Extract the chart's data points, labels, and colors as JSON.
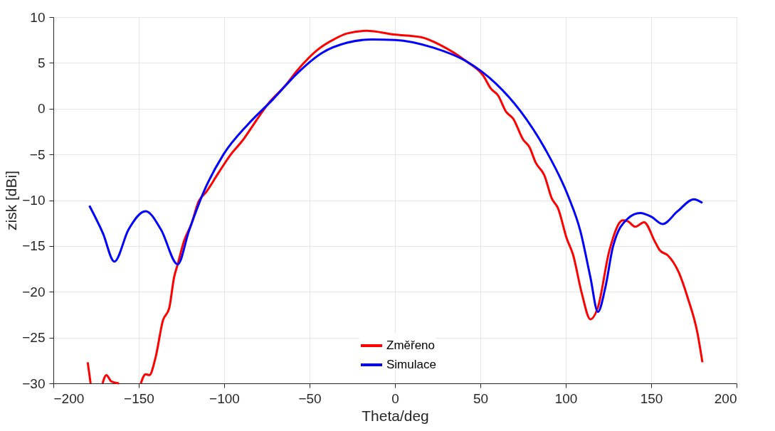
{
  "chart_data": {
    "type": "line",
    "xlabel": "Theta/deg",
    "ylabel": "zisk [dBi]",
    "xlim": [
      -200,
      200
    ],
    "xticks": [
      -200,
      -150,
      -100,
      -50,
      0,
      50,
      100,
      150,
      200
    ],
    "ylim": [
      -30,
      10
    ],
    "yticks": [
      -30,
      -25,
      -20,
      -15,
      -10,
      -5,
      0,
      5,
      10
    ],
    "grid": true,
    "legend": "bottom",
    "line_style": "solid",
    "marker": "none",
    "series": [
      {
        "name": "Změřeno",
        "color": "#ff0000",
        "x": [
          -179.9,
          -178.2,
          -175,
          -171.2,
          -169,
          -166,
          -161.6,
          -155,
          -148.8,
          -146,
          -143.8,
          -140.2,
          -135.8,
          -132.2,
          -129.3,
          -127.2,
          -123.6,
          -119.2,
          -114.9,
          -110.5,
          -103.3,
          -96.1,
          -88.9,
          -81.6,
          -74.4,
          -64.3,
          -57.1,
          -45.5,
          -35.4,
          -28.2,
          -16.6,
          -0.6,
          15.3,
          27,
          41.5,
          51.7,
          56.1,
          60.5,
          64.9,
          69.2,
          75.1,
          78.7,
          82.4,
          87.5,
          91.8,
          95.5,
          100.6,
          104.2,
          109.3,
          114.4,
          118.8,
          125.4,
          133.4,
          136.3,
          140.7,
          145.8,
          152.4,
          155.2,
          159.6,
          166.2,
          171.3,
          177.1,
          180
        ],
        "values": [
          -27.7,
          -30,
          null,
          -30,
          -29.1,
          -29.8,
          -30,
          null,
          -30,
          -29,
          -29.1,
          -27.2,
          -23.1,
          -21.8,
          -18.4,
          -17.0,
          -14.5,
          -12.6,
          -10.1,
          -9.1,
          -7.0,
          -5.0,
          -3.4,
          -1.4,
          0.5,
          2.5,
          4.2,
          6.4,
          7.6,
          8.2,
          8.5,
          8.1,
          7.8,
          6.9,
          5.2,
          3.6,
          2.2,
          1.4,
          -0.3,
          -1.1,
          -3.4,
          -4.2,
          -5.9,
          -7.3,
          -9.8,
          -10.9,
          -14.2,
          -15.9,
          -20.1,
          -23.0,
          -21.7,
          -15.6,
          -12.2,
          -12.3,
          -12.9,
          -12.4,
          -14.6,
          -15.5,
          -16.0,
          -17.9,
          -20.6,
          -24.5,
          -27.7
        ]
      },
      {
        "name": "Simulace",
        "color": "#0000ff",
        "x": [
          -178.9,
          -171,
          -164.3,
          -156,
          -146,
          -137,
          -127.2,
          -120.7,
          -112,
          -100.4,
          -86,
          -71.5,
          -57,
          -42.6,
          -28,
          -13.6,
          0,
          22.6,
          41.5,
          59,
          73.6,
          88.2,
          101.3,
          108.6,
          114.4,
          118.8,
          123.2,
          127.6,
          136.3,
          143.6,
          150,
          156.7,
          165.5,
          175,
          180
        ],
        "values": [
          -10.6,
          -13.6,
          -16.7,
          -13.2,
          -11.2,
          -13.2,
          -17.0,
          -13.4,
          -9.1,
          -5.0,
          -1.7,
          1.0,
          3.9,
          6.1,
          7.2,
          7.55,
          7.5,
          6.65,
          5.2,
          2.75,
          -0.3,
          -4.5,
          -9.5,
          -13.4,
          -18.4,
          -22.2,
          -19.5,
          -15.1,
          -12.0,
          -11.4,
          -11.8,
          -12.6,
          -11.2,
          -9.9,
          -10.3
        ]
      }
    ]
  }
}
